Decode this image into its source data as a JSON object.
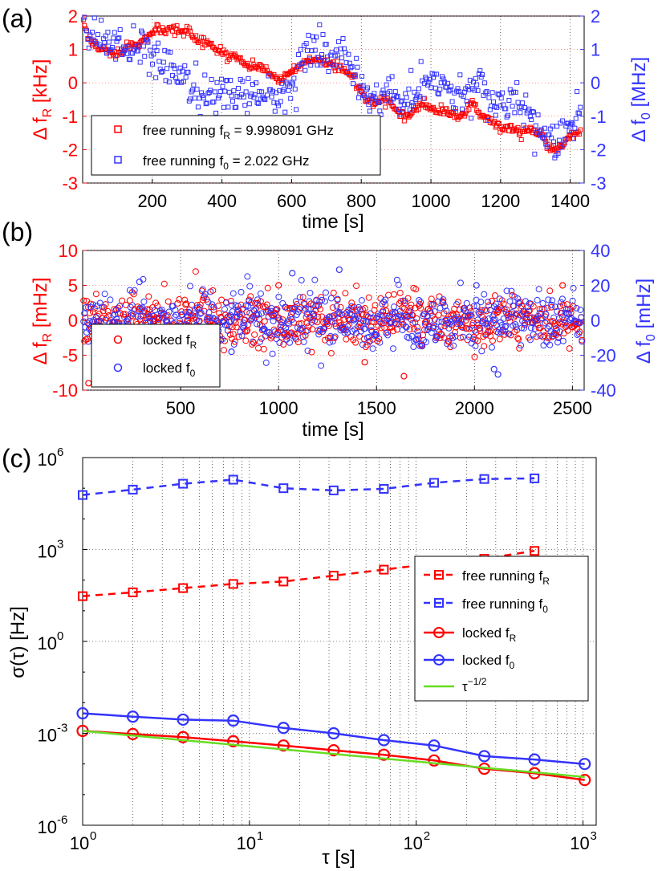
{
  "chart_data": [
    {
      "panel_label": "(a)",
      "type": "scatter",
      "xlabel": "time [s]",
      "xlim": [
        0,
        1440
      ],
      "xticks": [
        200,
        400,
        600,
        800,
        1000,
        1200,
        1400
      ],
      "ylabel_left": "Δ f_R [kHz]",
      "ylim_left": [
        -3,
        2
      ],
      "yticks_left": [
        -3,
        -2,
        -1,
        0,
        1,
        2
      ],
      "ylabel_right": "Δ f_0 [MHz]",
      "ylim_right": [
        -3,
        2
      ],
      "yticks_right": [
        -3,
        -2,
        -1,
        0,
        1,
        2
      ],
      "grid": true,
      "legend_position": "bottom-left",
      "series": [
        {
          "name": "free running f_R = 9.998091 GHz",
          "color": "#ff0000",
          "marker": "square",
          "axis": "left",
          "x": [
            0,
            20,
            40,
            60,
            80,
            100,
            120,
            140,
            160,
            180,
            200,
            220,
            240,
            260,
            280,
            300,
            320,
            340,
            360,
            380,
            400,
            420,
            440,
            460,
            480,
            500,
            520,
            540,
            560,
            580,
            600,
            620,
            640,
            660,
            680,
            700,
            720,
            740,
            760,
            780,
            800,
            820,
            840,
            860,
            880,
            900,
            920,
            940,
            960,
            980,
            1000,
            1020,
            1040,
            1060,
            1080,
            1100,
            1120,
            1140,
            1160,
            1180,
            1200,
            1220,
            1240,
            1260,
            1280,
            1300,
            1320,
            1340,
            1360,
            1380,
            1400,
            1420
          ],
          "y": [
            1.9,
            1.3,
            1.1,
            1.0,
            0.9,
            0.9,
            1.0,
            1.1,
            1.1,
            1.3,
            1.5,
            1.6,
            1.5,
            1.6,
            1.5,
            1.6,
            1.3,
            1.2,
            1.2,
            1.0,
            0.9,
            0.8,
            0.8,
            0.6,
            0.5,
            0.5,
            0.4,
            0.3,
            0.1,
            0.2,
            0.4,
            0.5,
            0.6,
            0.6,
            0.7,
            0.6,
            0.5,
            0.5,
            0.3,
            0.1,
            -0.2,
            -0.5,
            -0.6,
            -0.5,
            -0.6,
            -0.8,
            -1.0,
            -0.9,
            -0.8,
            -0.6,
            -0.8,
            -0.9,
            -0.8,
            -1.0,
            -1.0,
            -0.8,
            -0.6,
            -0.9,
            -1.1,
            -1.2,
            -1.4,
            -1.3,
            -1.4,
            -1.5,
            -1.4,
            -1.5,
            -1.6,
            -1.9,
            -2.0,
            -1.8,
            -1.6,
            -1.5
          ]
        },
        {
          "name": "free running f_0 = 2.022 GHz",
          "color": "#3333ff",
          "marker": "square",
          "axis": "right",
          "x": [
            0,
            20,
            40,
            60,
            80,
            100,
            120,
            140,
            160,
            180,
            200,
            220,
            240,
            260,
            280,
            300,
            320,
            340,
            360,
            380,
            400,
            420,
            440,
            460,
            480,
            500,
            520,
            540,
            560,
            580,
            600,
            620,
            640,
            660,
            680,
            700,
            720,
            740,
            760,
            780,
            800,
            820,
            840,
            860,
            880,
            900,
            920,
            940,
            960,
            980,
            1000,
            1020,
            1040,
            1060,
            1080,
            1100,
            1120,
            1140,
            1160,
            1180,
            1200,
            1220,
            1240,
            1260,
            1280,
            1300,
            1320,
            1340,
            1360,
            1380,
            1400,
            1420
          ],
          "y": [
            1.8,
            1.4,
            1.3,
            1.2,
            1.1,
            1.2,
            1.0,
            1.0,
            1.1,
            0.9,
            0.7,
            0.6,
            0.6,
            0.5,
            0.3,
            0.1,
            -0.2,
            -0.3,
            -0.3,
            -0.4,
            -0.2,
            -0.3,
            -0.4,
            -0.3,
            -0.4,
            -0.3,
            -0.4,
            -0.4,
            -0.5,
            -0.3,
            -0.1,
            0.3,
            0.6,
            0.8,
            0.9,
            0.8,
            0.9,
            1.0,
            0.8,
            0.5,
            0.0,
            -0.4,
            -0.5,
            -0.3,
            -0.2,
            -0.4,
            -0.5,
            -0.4,
            -0.2,
            -0.3,
            0.0,
            0.1,
            -0.1,
            -0.3,
            -0.5,
            -0.3,
            -0.2,
            0.0,
            -0.3,
            -0.5,
            -0.6,
            -0.8,
            -0.5,
            -0.9,
            -1.0,
            -1.2,
            -1.4,
            -1.6,
            -1.8,
            -1.5,
            -1.2,
            -1.1
          ]
        }
      ]
    },
    {
      "panel_label": "(b)",
      "type": "scatter",
      "xlabel": "time [s]",
      "xlim": [
        0,
        2560
      ],
      "xticks": [
        500,
        1000,
        1500,
        2000,
        2500
      ],
      "ylabel_left": "Δ f_R [mHz]",
      "ylim_left": [
        -10,
        10
      ],
      "yticks_left": [
        -10,
        -5,
        0,
        5,
        10
      ],
      "ylabel_right": "Δ f_0 [mHz]",
      "ylim_right": [
        -40,
        40
      ],
      "yticks_right": [
        -40,
        -20,
        0,
        20,
        40
      ],
      "grid": true,
      "legend_position": "bottom-left",
      "series": [
        {
          "name": "locked f_R",
          "color": "#ff0000",
          "marker": "circle",
          "axis": "left",
          "noise_std": 2.0,
          "outliers": [
            {
              "x": 30,
              "y": -9.0
            },
            {
              "x": 1640,
              "y": -8.0
            },
            {
              "x": 1440,
              "y": -6.0
            },
            {
              "x": 1000,
              "y": 5.0
            },
            {
              "x": 2450,
              "y": 5.0
            }
          ]
        },
        {
          "name": "locked f_0",
          "color": "#3333ff",
          "marker": "circle",
          "axis": "right",
          "noise_std": 8.0,
          "outliers": [
            {
              "x": 1310,
              "y": 29.0
            },
            {
              "x": 1070,
              "y": 27.0
            },
            {
              "x": 2010,
              "y": 20.0
            },
            {
              "x": 2100,
              "y": -28.0
            },
            {
              "x": 2120,
              "y": -31.0
            },
            {
              "x": 290,
              "y": 22.0
            },
            {
              "x": 760,
              "y": -18.0
            }
          ]
        }
      ]
    },
    {
      "panel_label": "(c)",
      "type": "line",
      "scale": "log-log",
      "xlabel": "τ [s]",
      "ylabel": "σ(τ) [Hz]",
      "xlim": [
        1,
        1200
      ],
      "ylim": [
        1e-06,
        1000000.0
      ],
      "xticks": [
        {
          "value": 1,
          "label": "10",
          "exp": "0"
        },
        {
          "value": 10,
          "label": "10",
          "exp": "1"
        },
        {
          "value": 100,
          "label": "10",
          "exp": "2"
        },
        {
          "value": 1000,
          "label": "10",
          "exp": "3"
        }
      ],
      "yticks": [
        {
          "value": 1e-06,
          "label": "10",
          "exp": "-6"
        },
        {
          "value": 0.001,
          "label": "10",
          "exp": "-3"
        },
        {
          "value": 1,
          "label": "10",
          "exp": "0"
        },
        {
          "value": 1000,
          "label": "10",
          "exp": "3"
        },
        {
          "value": 1000000.0,
          "label": "10",
          "exp": "6"
        }
      ],
      "grid": true,
      "legend_position": "right-middle",
      "series": [
        {
          "name": "free running f_R",
          "color": "#ff0000",
          "style": "dashed",
          "marker": "square",
          "x": [
            1,
            2,
            4,
            8,
            16,
            32,
            64,
            128,
            256,
            512
          ],
          "y": [
            30,
            40,
            55,
            75,
            90,
            140,
            220,
            350,
            500,
            900
          ]
        },
        {
          "name": "free running f_0",
          "color": "#3333ff",
          "style": "dashed",
          "marker": "square",
          "x": [
            1,
            2,
            4,
            8,
            16,
            32,
            64,
            128,
            256,
            512
          ],
          "y": [
            60000,
            90000,
            140000,
            190000,
            100000,
            85000,
            95000,
            150000,
            200000,
            210000
          ]
        },
        {
          "name": "locked f_R",
          "color": "#ff0000",
          "style": "solid",
          "marker": "circle",
          "x": [
            1,
            2,
            4,
            8,
            16,
            32,
            64,
            128,
            256,
            512,
            1024
          ],
          "y": [
            0.0012,
            0.00095,
            0.00075,
            0.00055,
            0.0004,
            0.00028,
            0.0002,
            0.00013,
            7e-05,
            5e-05,
            3e-05
          ]
        },
        {
          "name": "locked f_0",
          "color": "#3333ff",
          "style": "solid",
          "marker": "circle",
          "x": [
            1,
            2,
            4,
            8,
            16,
            32,
            64,
            128,
            256,
            512,
            1024
          ],
          "y": [
            0.0045,
            0.0035,
            0.0028,
            0.0026,
            0.0015,
            0.001,
            0.0006,
            0.0004,
            0.00018,
            0.00014,
            0.0001
          ]
        },
        {
          "name": "τ^-1/2",
          "color": "#66dd22",
          "style": "solid",
          "marker": "none",
          "x": [
            1,
            1024
          ],
          "y": [
            0.0012,
            3.75e-05
          ]
        }
      ]
    }
  ],
  "legends": {
    "a": [
      {
        "prefix": "free running f",
        "sub": "R",
        "suffix": " = 9.998091 GHz"
      },
      {
        "prefix": "free running f",
        "sub": "0",
        "suffix": " = 2.022 GHz"
      }
    ],
    "b": [
      {
        "prefix": "locked f",
        "sub": "R"
      },
      {
        "prefix": "locked f",
        "sub": "0"
      }
    ],
    "c": [
      {
        "prefix": "free running f",
        "sub": "R"
      },
      {
        "prefix": "free running f",
        "sub": "0"
      },
      {
        "prefix": "locked f",
        "sub": "R"
      },
      {
        "prefix": "locked f",
        "sub": "0"
      },
      {
        "prefix": "τ",
        "sup": "−1/2"
      }
    ]
  },
  "axis_labels": {
    "a_left": {
      "pre": "Δ f",
      "sub": "R",
      "post": " [kHz]"
    },
    "a_right": {
      "pre": "Δ f",
      "sub": "0",
      "post": " [MHz]"
    },
    "b_left": {
      "pre": "Δ f",
      "sub": "R",
      "post": " [mHz]"
    },
    "b_right": {
      "pre": "Δ f",
      "sub": "0",
      "post": " [mHz]"
    },
    "a_x": "time [s]",
    "b_x": "time [s]",
    "c_x": "τ [s]",
    "c_y": "σ(τ) [Hz]"
  }
}
